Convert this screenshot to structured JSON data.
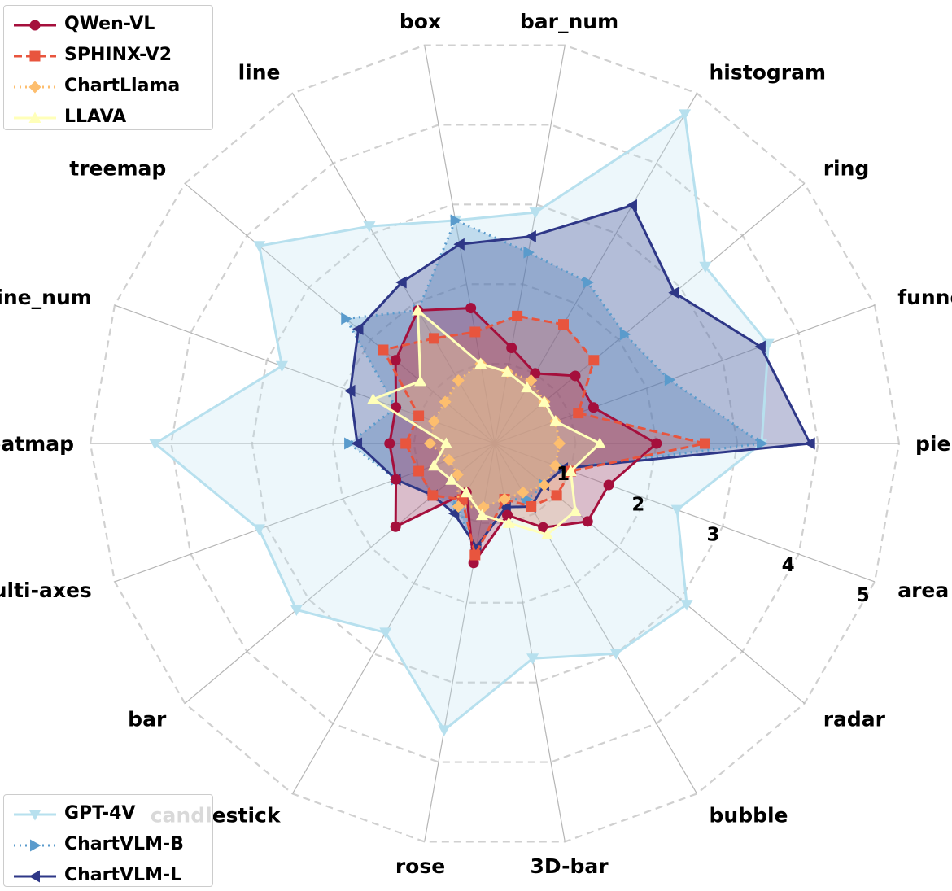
{
  "chart_data": {
    "type": "radar",
    "categories": [
      "pie",
      "funnel",
      "ring",
      "histogram",
      "bar_num",
      "box",
      "line",
      "treemap",
      "line_num",
      "heatmap",
      "multi-axes",
      "bar",
      "candlestick",
      "rose",
      "3D-bar",
      "bubble",
      "radar",
      "area"
    ],
    "rlim": [
      0,
      5
    ],
    "radial_ticks": [
      "1",
      "2",
      "3",
      "4",
      "5"
    ],
    "grid": true,
    "series": [
      {
        "name": "GPT-4V",
        "color": "#b7e0ee",
        "marker": "triangle-down",
        "linestyle": "solid",
        "values": [
          3.3,
          3.6,
          3.4,
          4.7,
          2.9,
          2.8,
          3.1,
          3.8,
          2.8,
          4.2,
          3.1,
          3.2,
          2.7,
          3.6,
          2.7,
          3.0,
          3.1,
          2.4
        ]
      },
      {
        "name": "ChartVLM-B",
        "color": "#5a9bcc",
        "marker": "triangle-right",
        "linestyle": "dotted",
        "values": [
          3.3,
          2.3,
          2.1,
          2.3,
          2.4,
          2.8,
          1.9,
          2.4,
          1.3,
          1.8,
          1.3,
          1.0,
          0.9,
          1.4,
          0.7,
          0.8,
          0.8,
          0.9
        ]
      },
      {
        "name": "ChartVLM-L",
        "color": "#2e3787",
        "marker": "triangle-left",
        "linestyle": "solid",
        "values": [
          3.9,
          3.5,
          2.9,
          3.4,
          2.6,
          2.5,
          2.3,
          2.2,
          1.9,
          1.7,
          1.3,
          1.0,
          1.0,
          1.3,
          0.8,
          0.9,
          0.8,
          0.9
        ]
      },
      {
        "name": "QWen-VL",
        "color": "#a50f3c",
        "marker": "circle",
        "linestyle": "solid",
        "values": [
          2.0,
          1.3,
          1.3,
          1.0,
          1.2,
          1.7,
          1.9,
          1.6,
          1.3,
          1.3,
          1.3,
          1.6,
          0.7,
          1.5,
          0.9,
          1.2,
          1.5,
          1.5
        ]
      },
      {
        "name": "SPHINX-V2",
        "color": "#e8553e",
        "marker": "square",
        "linestyle": "dashed",
        "values": [
          2.6,
          1.1,
          1.6,
          1.7,
          1.6,
          1.4,
          1.5,
          1.8,
          1.0,
          1.1,
          1.0,
          1.0,
          0.8,
          1.4,
          0.7,
          0.9,
          1.0,
          1.0
        ]
      },
      {
        "name": "ChartLlama",
        "color": "#fdbe6e",
        "marker": "diamond",
        "linestyle": "dotted",
        "values": [
          0.8,
          0.8,
          0.8,
          0.9,
          0.9,
          1.0,
          0.9,
          0.8,
          0.8,
          0.8,
          0.6,
          0.6,
          0.9,
          0.8,
          0.7,
          0.7,
          0.8,
          0.8
        ]
      },
      {
        "name": "LLAVA",
        "color": "#ffffb9",
        "marker": "triangle-up",
        "linestyle": "solid",
        "values": [
          1.3,
          0.8,
          0.8,
          0.8,
          0.9,
          1.0,
          1.9,
          1.2,
          1.6,
          0.6,
          0.8,
          0.7,
          0.7,
          0.9,
          1.0,
          1.3,
          1.3,
          1.0
        ]
      }
    ],
    "legend_top": [
      "QWen-VL",
      "SPHINX-V2",
      "ChartLlama",
      "LLAVA"
    ],
    "legend_bottom": [
      "GPT-4V",
      "ChartVLM-B",
      "ChartVLM-L"
    ],
    "legend_placement": [
      "upper-left",
      "lower-left"
    ]
  }
}
